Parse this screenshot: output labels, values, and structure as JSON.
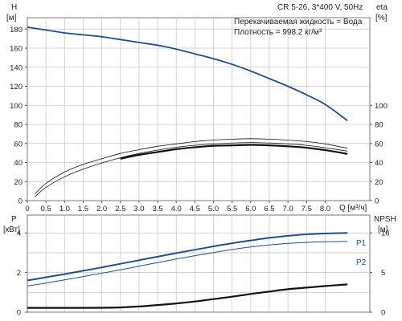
{
  "colors": {
    "head_curve": "#1f4e8c",
    "eta_curve": "#111111",
    "envelope": "#111111",
    "p1_curve": "#1f4e8c",
    "p2_curve": "#1f4e8c",
    "npsh_curve": "#111111",
    "grid": "#c8c8c8",
    "label_blue": "#1f4e8c"
  },
  "chart_data": [
    {
      "type": "line",
      "title": "CR 5-26, 3*400 V, 50Hz",
      "annotations": [
        "Перекачиваемая жидкость = Вода",
        "Плотность = 998.2 кг/м³"
      ],
      "xlabel": "Q [м³/ч]",
      "ylabel_left": [
        "H",
        "[м]"
      ],
      "ylabel_right": [
        "eta",
        "[%]"
      ],
      "x_ticks": [
        {
          "v": 0,
          "label": "0"
        },
        {
          "v": 0.5,
          "label": "0.5"
        },
        {
          "v": 1,
          "label": "1.0"
        },
        {
          "v": 1.5,
          "label": "1.5"
        },
        {
          "v": 2,
          "label": "2.0"
        },
        {
          "v": 2.5,
          "label": "2.5"
        },
        {
          "v": 3,
          "label": "3.0"
        },
        {
          "v": 3.5,
          "label": "3.5"
        },
        {
          "v": 4,
          "label": "4.0"
        },
        {
          "v": 4.5,
          "label": "4.5"
        },
        {
          "v": 5,
          "label": "5.0"
        },
        {
          "v": 5.5,
          "label": "5.5"
        },
        {
          "v": 6,
          "label": "6.0"
        },
        {
          "v": 6.5,
          "label": "6.5"
        },
        {
          "v": 7,
          "label": "7.0"
        },
        {
          "v": 7.5,
          "label": "7.5"
        },
        {
          "v": 8,
          "label": "8.0"
        }
      ],
      "y_ticks_left": [
        0,
        20,
        40,
        60,
        80,
        100,
        120,
        140,
        160,
        180
      ],
      "y_ticks_right": [
        0,
        20,
        40,
        60,
        80,
        100
      ],
      "xlim": [
        0,
        9.2
      ],
      "ylim": [
        0,
        192
      ],
      "grid": true,
      "series": [
        {
          "key": "head",
          "x": [
            0,
            0.5,
            1,
            1.5,
            2,
            2.5,
            3,
            3.5,
            4,
            4.5,
            5,
            5.5,
            6,
            6.5,
            7,
            7.5,
            8,
            8.6
          ],
          "y": [
            182,
            179,
            176,
            174,
            172,
            169,
            166,
            163,
            159,
            154,
            149,
            143,
            136,
            128,
            120,
            111,
            101,
            84
          ]
        },
        {
          "key": "eta",
          "x": [
            2.5,
            3,
            3.5,
            4,
            4.5,
            5,
            5.5,
            6,
            6.5,
            7,
            7.5,
            8,
            8.6
          ],
          "y": [
            44,
            48,
            51,
            54,
            56,
            57.5,
            58,
            58.5,
            58,
            57,
            55.5,
            53,
            49
          ]
        },
        {
          "key": "eta_outer",
          "x": [
            0.2,
            0.5,
            1,
            1.5,
            2,
            2.5,
            3,
            3.5,
            4,
            4.5,
            5,
            5.5,
            6,
            6.5,
            7,
            7.5,
            8,
            8.6
          ],
          "y": [
            7,
            18,
            30,
            38,
            44,
            49.5,
            53.5,
            57,
            59.5,
            62,
            63.5,
            64.5,
            65,
            64.5,
            63.5,
            62,
            59.5,
            55
          ]
        },
        {
          "key": "eta_inner",
          "x": [
            0.2,
            0.5,
            1,
            1.5,
            2,
            2.5,
            3,
            3.5,
            4,
            4.5,
            5,
            5.5,
            6,
            6.5,
            7,
            7.5,
            8,
            8.6
          ],
          "y": [
            4,
            14,
            25,
            33,
            39.5,
            45,
            49.5,
            53,
            56,
            58,
            59.5,
            60.5,
            61,
            60.5,
            59.5,
            58,
            55.5,
            52
          ]
        }
      ]
    },
    {
      "type": "line",
      "xlabel": "",
      "ylabel_left": [
        "P",
        "[кВт]"
      ],
      "ylabel_right": [
        "NPSH",
        "[м]"
      ],
      "y_ticks_left": [
        0,
        2,
        4
      ],
      "y_ticks_right": [
        0,
        5,
        10
      ],
      "xlim": [
        0,
        9.2
      ],
      "ylim_left": [
        0,
        4.9
      ],
      "ylim_right": [
        0,
        12.25
      ],
      "grid": true,
      "series": [
        {
          "key": "p1",
          "name": "P1",
          "x": [
            0,
            0.5,
            1,
            1.5,
            2,
            2.5,
            3,
            3.5,
            4,
            4.5,
            5,
            5.5,
            6,
            6.5,
            7,
            7.5,
            8,
            8.6
          ],
          "y": [
            1.6,
            1.76,
            1.92,
            2.09,
            2.26,
            2.44,
            2.62,
            2.8,
            2.98,
            3.15,
            3.32,
            3.48,
            3.62,
            3.75,
            3.85,
            3.93,
            3.97,
            4.0
          ]
        },
        {
          "key": "p2",
          "name": "P2",
          "x": [
            0,
            0.5,
            1,
            1.5,
            2,
            2.5,
            3,
            3.5,
            4,
            4.5,
            5,
            5.5,
            6,
            6.5,
            7,
            7.5,
            8,
            8.6
          ],
          "y": [
            1.32,
            1.47,
            1.63,
            1.8,
            1.97,
            2.14,
            2.32,
            2.5,
            2.68,
            2.85,
            3.01,
            3.16,
            3.29,
            3.39,
            3.47,
            3.52,
            3.55,
            3.57
          ]
        },
        {
          "key": "npsh",
          "axis": "right",
          "x": [
            0,
            1,
            2,
            2.5,
            3,
            3.5,
            4,
            4.5,
            5,
            5.5,
            6,
            6.5,
            7,
            7.5,
            8,
            8.6
          ],
          "y": [
            0.55,
            0.55,
            0.56,
            0.6,
            0.72,
            0.9,
            1.1,
            1.35,
            1.65,
            1.95,
            2.3,
            2.6,
            2.9,
            3.1,
            3.3,
            3.5
          ]
        }
      ]
    }
  ]
}
